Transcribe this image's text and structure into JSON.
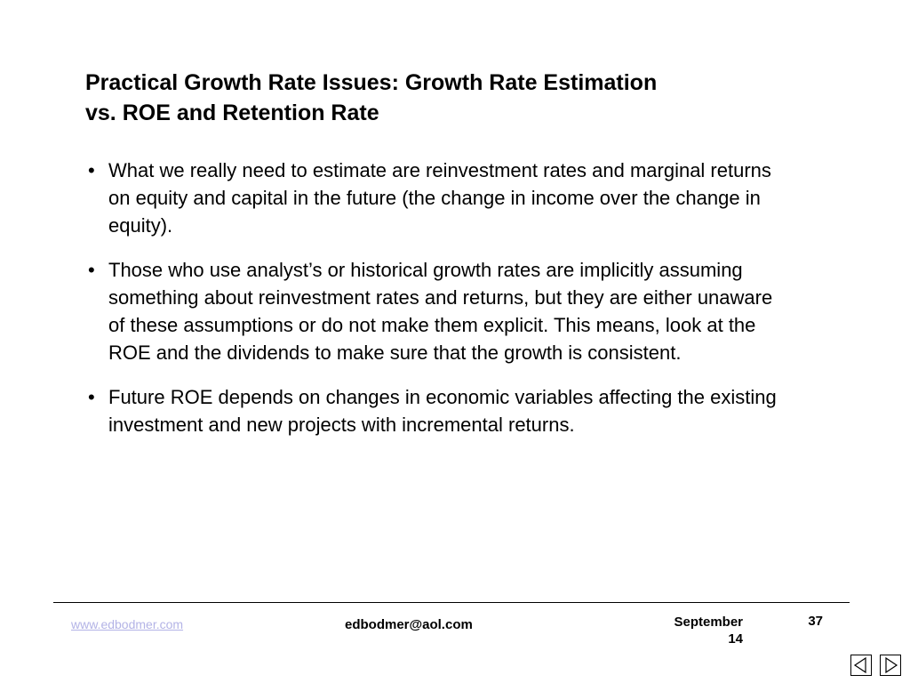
{
  "slide": {
    "title_line1": "Practical Growth Rate Issues: Growth Rate Estimation",
    "title_line2": "vs. ROE and Retention Rate",
    "bullet_marker": "•",
    "bullets": [
      "What we really need to estimate are reinvestment rates and marginal returns on equity and capital in the future (the change in income over the change in equity).",
      "Those who use analyst’s or historical growth rates are implicitly assuming something about reinvestment rates and returns, but they are either unaware of these assumptions or do not make them explicit. This means, look at the ROE and the dividends to make sure that the growth is consistent.",
      "Future ROE depends on changes  in economic variables affecting the existing investment and new projects with incremental returns."
    ]
  },
  "footer": {
    "website": "www.edbodmer.com",
    "email": "edbodmer@aol.com",
    "date_line1": "September",
    "date_line2": "14",
    "page_number": "37",
    "link_color": "#b3b3e6"
  },
  "navigation": {
    "prev_icon": "triangle-left-icon",
    "next_icon": "triangle-right-icon"
  }
}
